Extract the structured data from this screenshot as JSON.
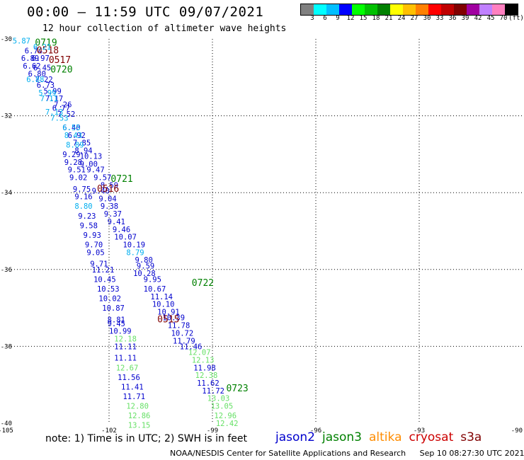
{
  "header": {
    "title": "00:00 – 11:59 UTC 09/07/2021",
    "subtitle": "12 hour collection of altimeter wave heights"
  },
  "color_scale": {
    "colors": [
      "#808080",
      "#00ffff",
      "#00bfff",
      "#0000ff",
      "#00ff00",
      "#00c000",
      "#008000",
      "#ffff00",
      "#ffc000",
      "#ff8000",
      "#ff0000",
      "#c00000",
      "#800000",
      "#a000a0",
      "#c080ff",
      "#ff80c0",
      "#000000"
    ],
    "labels": [
      "3",
      "6",
      "9",
      "12",
      "15",
      "18",
      "21",
      "24",
      "27",
      "30",
      "33",
      "36",
      "39",
      "42",
      "45",
      "70",
      "(ft)"
    ]
  },
  "chart_data": {
    "type": "scatter",
    "xlim": [
      -105,
      -90
    ],
    "ylim": [
      -40,
      -30
    ],
    "x_ticks": [
      "-105",
      "-102",
      "-99",
      "-96",
      "-93",
      "-90"
    ],
    "y_ticks": [
      "-30",
      "-32",
      "-34",
      "-36",
      "-38",
      "-40"
    ],
    "grid": true,
    "series": [
      {
        "name": "jason2",
        "color": "#0000cd",
        "labels": [
          {
            "lon": -104.45,
            "lat": -30.3,
            "text": "6.74"
          },
          {
            "lon": -104.55,
            "lat": -30.5,
            "text": "6.89"
          },
          {
            "lon": -104.25,
            "lat": -30.5,
            "text": "6.97"
          },
          {
            "lon": -104.5,
            "lat": -30.7,
            "text": "6.62"
          },
          {
            "lon": -104.2,
            "lat": -30.75,
            "text": "6.45"
          },
          {
            "lon": -104.35,
            "lat": -30.9,
            "text": "6.80"
          },
          {
            "lon": -104.15,
            "lat": -31.05,
            "text": "7.22"
          },
          {
            "lon": -104.1,
            "lat": -31.2,
            "text": "6.73"
          },
          {
            "lon": -103.9,
            "lat": -31.35,
            "text": "5.99"
          },
          {
            "lon": -103.85,
            "lat": -31.55,
            "text": "7.17"
          },
          {
            "lon": -103.6,
            "lat": -31.7,
            "text": "7.26"
          },
          {
            "lon": -103.65,
            "lat": -31.8,
            "text": "6.77"
          },
          {
            "lon": -103.5,
            "lat": -31.95,
            "text": "7.52"
          },
          {
            "lon": -103.35,
            "lat": -32.3,
            "text": "6.40"
          },
          {
            "lon": -103.2,
            "lat": -32.5,
            "text": "6.92"
          },
          {
            "lon": -103.05,
            "lat": -32.7,
            "text": "7.85"
          },
          {
            "lon": -103.0,
            "lat": -32.9,
            "text": "8.94"
          },
          {
            "lon": -103.35,
            "lat": -33.0,
            "text": "9.29"
          },
          {
            "lon": -102.85,
            "lat": -33.05,
            "text": "10.13"
          },
          {
            "lon": -103.3,
            "lat": -33.2,
            "text": "9.28"
          },
          {
            "lon": -102.85,
            "lat": -33.25,
            "text": "9.00"
          },
          {
            "lon": -103.2,
            "lat": -33.4,
            "text": "9.51"
          },
          {
            "lon": -102.65,
            "lat": -33.4,
            "text": "9.47"
          },
          {
            "lon": -103.15,
            "lat": -33.6,
            "text": "9.02"
          },
          {
            "lon": -102.45,
            "lat": -33.6,
            "text": "9.57"
          },
          {
            "lon": -102.25,
            "lat": -33.8,
            "text": "8.59"
          },
          {
            "lon": -103.05,
            "lat": -33.9,
            "text": "9.75"
          },
          {
            "lon": -102.5,
            "lat": -33.95,
            "text": "9.40"
          },
          {
            "lon": -103.0,
            "lat": -34.1,
            "text": "9.16"
          },
          {
            "lon": -102.3,
            "lat": -34.15,
            "text": "9.04"
          },
          {
            "lon": -102.25,
            "lat": -34.35,
            "text": "9.38"
          },
          {
            "lon": -102.15,
            "lat": -34.55,
            "text": "9.37"
          },
          {
            "lon": -102.9,
            "lat": -34.6,
            "text": "9.23"
          },
          {
            "lon": -102.05,
            "lat": -34.75,
            "text": "9.41"
          },
          {
            "lon": -102.85,
            "lat": -34.85,
            "text": "9.58"
          },
          {
            "lon": -101.9,
            "lat": -34.95,
            "text": "9.46"
          },
          {
            "lon": -102.75,
            "lat": -35.1,
            "text": "9.93"
          },
          {
            "lon": -101.85,
            "lat": -35.15,
            "text": "10.07"
          },
          {
            "lon": -102.7,
            "lat": -35.35,
            "text": "9.70"
          },
          {
            "lon": -101.6,
            "lat": -35.35,
            "text": "10.19"
          },
          {
            "lon": -102.65,
            "lat": -35.55,
            "text": "9.05"
          },
          {
            "lon": -101.25,
            "lat": -35.75,
            "text": "9.80"
          },
          {
            "lon": -102.55,
            "lat": -35.85,
            "text": "9.71"
          },
          {
            "lon": -101.2,
            "lat": -35.9,
            "text": "9.59"
          },
          {
            "lon": -102.5,
            "lat": -36.0,
            "text": "11.21"
          },
          {
            "lon": -101.3,
            "lat": -36.1,
            "text": "10.28"
          },
          {
            "lon": -102.45,
            "lat": -36.25,
            "text": "10.45"
          },
          {
            "lon": -101.0,
            "lat": -36.25,
            "text": "9.95"
          },
          {
            "lon": -102.35,
            "lat": -36.5,
            "text": "10.53"
          },
          {
            "lon": -101.0,
            "lat": -36.5,
            "text": "10.67"
          },
          {
            "lon": -100.8,
            "lat": -36.7,
            "text": "11.14"
          },
          {
            "lon": -102.3,
            "lat": -36.75,
            "text": "10.02"
          },
          {
            "lon": -100.75,
            "lat": -36.9,
            "text": "10.10"
          },
          {
            "lon": -102.2,
            "lat": -37.0,
            "text": "10.87"
          },
          {
            "lon": -100.6,
            "lat": -37.1,
            "text": "10.91"
          },
          {
            "lon": -100.45,
            "lat": -37.25,
            "text": "10.39"
          },
          {
            "lon": -102.05,
            "lat": -37.3,
            "text": "8.81"
          },
          {
            "lon": -102.05,
            "lat": -37.4,
            "text": "9.45"
          },
          {
            "lon": -100.3,
            "lat": -37.45,
            "text": "11.78"
          },
          {
            "lon": -102.0,
            "lat": -37.6,
            "text": "10.99"
          },
          {
            "lon": -100.2,
            "lat": -37.65,
            "text": "10.72"
          },
          {
            "lon": -100.15,
            "lat": -37.85,
            "text": "11.79"
          },
          {
            "lon": -101.85,
            "lat": -38.0,
            "text": "11.11"
          },
          {
            "lon": -99.95,
            "lat": -38.0,
            "text": "11.46"
          },
          {
            "lon": -101.85,
            "lat": -38.3,
            "text": "11.11"
          },
          {
            "lon": -99.55,
            "lat": -38.55,
            "text": "11.98"
          },
          {
            "lon": -101.75,
            "lat": -38.8,
            "text": "11.56"
          },
          {
            "lon": -99.45,
            "lat": -38.95,
            "text": "11.62"
          },
          {
            "lon": -101.65,
            "lat": -39.05,
            "text": "11.41"
          },
          {
            "lon": -99.3,
            "lat": -39.15,
            "text": "11.72"
          },
          {
            "lon": -101.6,
            "lat": -39.3,
            "text": "11.71"
          }
        ]
      },
      {
        "name": "jason3",
        "color": "#008000",
        "labels": [
          {
            "lon": -104.15,
            "lat": -30.1,
            "text": "0719"
          },
          {
            "lon": -103.7,
            "lat": -30.8,
            "text": "0720"
          },
          {
            "lon": -101.95,
            "lat": -33.65,
            "text": "0721"
          },
          {
            "lon": -99.6,
            "lat": -36.35,
            "text": "0722"
          },
          {
            "lon": -98.6,
            "lat": -39.1,
            "text": "0723"
          }
        ]
      },
      {
        "name": "cryosat",
        "color": "#800000",
        "labels": [
          {
            "lon": -104.1,
            "lat": -30.3,
            "text": "0518"
          },
          {
            "lon": -103.75,
            "lat": -30.55,
            "text": "0517"
          },
          {
            "lon": -102.35,
            "lat": -33.9,
            "text": "0516"
          },
          {
            "lon": -100.6,
            "lat": -37.3,
            "text": "0515"
          }
        ]
      },
      {
        "name": "cyan track",
        "color": "#00aeef",
        "labels": [
          {
            "lon": -104.8,
            "lat": -30.05,
            "text": "5.87"
          },
          {
            "lon": -104.2,
            "lat": -30.2,
            "text": "6.21"
          },
          {
            "lon": -104.4,
            "lat": -31.05,
            "text": "6.88"
          },
          {
            "lon": -104.05,
            "lat": -31.4,
            "text": "5.99"
          },
          {
            "lon": -104.0,
            "lat": -31.55,
            "text": "7.11"
          },
          {
            "lon": -103.85,
            "lat": -31.9,
            "text": "7.13"
          },
          {
            "lon": -103.7,
            "lat": -32.05,
            "text": "7.53"
          },
          {
            "lon": -103.35,
            "lat": -32.3,
            "text": "6.55"
          },
          {
            "lon": -103.3,
            "lat": -32.5,
            "text": "8.43"
          },
          {
            "lon": -103.25,
            "lat": -32.75,
            "text": "8.89"
          },
          {
            "lon": -103.0,
            "lat": -34.35,
            "text": "8.80"
          },
          {
            "lon": -101.5,
            "lat": -35.55,
            "text": "8.79"
          }
        ]
      },
      {
        "name": "light green track",
        "color": "#66e066",
        "labels": [
          {
            "lon": -101.85,
            "lat": -37.8,
            "text": "12.18"
          },
          {
            "lon": -101.8,
            "lat": -38.55,
            "text": "12.67"
          },
          {
            "lon": -101.5,
            "lat": -39.55,
            "text": "12.80"
          },
          {
            "lon": -101.45,
            "lat": -39.8,
            "text": "12.86"
          },
          {
            "lon": -101.45,
            "lat": -40.05,
            "text": "13.15"
          },
          {
            "lon": -99.7,
            "lat": -38.15,
            "text": "12.07"
          },
          {
            "lon": -99.6,
            "lat": -38.35,
            "text": "12.13"
          },
          {
            "lon": -99.5,
            "lat": -38.75,
            "text": "12.38"
          },
          {
            "lon": -99.15,
            "lat": -39.35,
            "text": "13.03"
          },
          {
            "lon": -99.05,
            "lat": -39.55,
            "text": "13.05"
          },
          {
            "lon": -98.95,
            "lat": -39.8,
            "text": "12.96"
          },
          {
            "lon": -98.9,
            "lat": -40.0,
            "text": "12.42"
          }
        ]
      }
    ]
  },
  "note": "note: 1) Time is in UTC; 2) SWH is in feet",
  "legend": [
    {
      "name": "jason2",
      "color": "#0000cd"
    },
    {
      "name": "jason3",
      "color": "#008000"
    },
    {
      "name": "altika",
      "color": "#ff8c00"
    },
    {
      "name": "cryosat",
      "color": "#cc0000"
    },
    {
      "name": "s3a",
      "color": "#800000"
    }
  ],
  "footer": {
    "source": "NOAA/NESDIS Center for Satellite Applications and Research",
    "timestamp": "Sep 10 08:27:30 UTC 2021"
  }
}
